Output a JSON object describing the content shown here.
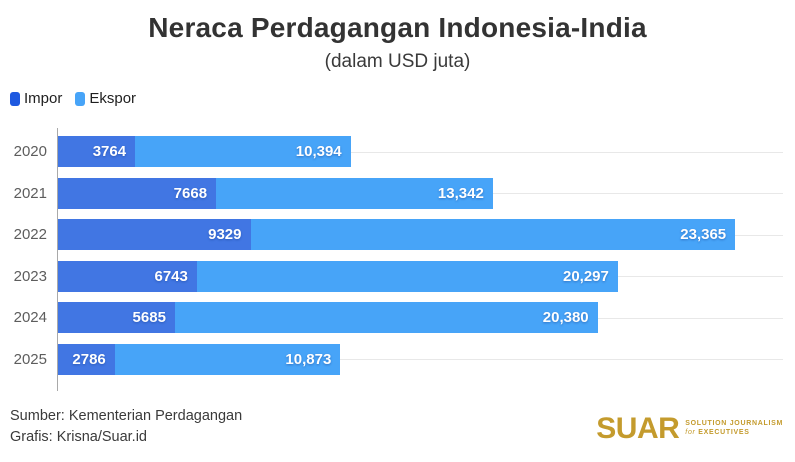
{
  "header": {
    "title": "Neraca Perdagangan Indonesia-India",
    "subtitle": "(dalam USD juta)"
  },
  "legend": [
    {
      "label": "Impor",
      "color": "#1E59E0"
    },
    {
      "label": "Ekspor",
      "color": "#47A4F8"
    }
  ],
  "chart_data": {
    "type": "bar",
    "orientation": "horizontal",
    "stacked": true,
    "title": "Neraca Perdagangan Indonesia-India",
    "subtitle": "(dalam USD juta)",
    "categories": [
      "2020",
      "2021",
      "2022",
      "2023",
      "2024",
      "2025"
    ],
    "series": [
      {
        "name": "Impor",
        "color": "#4176E3",
        "values": [
          3764,
          7668,
          9329,
          6743,
          5685,
          2786
        ],
        "labels": [
          "3764",
          "7668",
          "9329",
          "6743",
          "5685",
          "2786"
        ]
      },
      {
        "name": "Ekspor",
        "color": "#47A4F8",
        "values": [
          10394,
          13342,
          23365,
          20297,
          20380,
          10873
        ],
        "labels": [
          "10,394",
          "13,342",
          "23,365",
          "20,297",
          "20,380",
          "10,873"
        ]
      }
    ],
    "xlim": [
      0,
      35000
    ],
    "grid": "horizontal-row-center-lines",
    "legend_position": "top-left"
  },
  "footer": {
    "source": "Sumber: Kementerian Perdagangan",
    "credit": "Grafis: Krisna/Suar.id"
  },
  "logo": {
    "word": "SUAR",
    "color": "#C49B2D",
    "tagline_line1": "SOLUTION JOURNALISM",
    "tagline_line2_italic": "for",
    "tagline_line2": " EXECUTIVES"
  }
}
